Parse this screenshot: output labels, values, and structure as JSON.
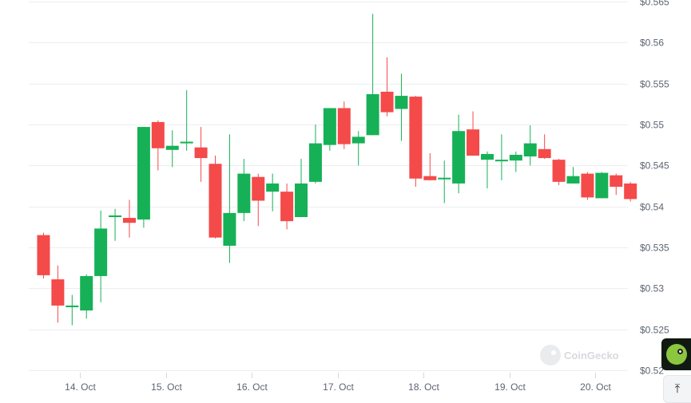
{
  "chart_data": {
    "type": "candlestick",
    "title": "",
    "xlabel": "",
    "ylabel": "",
    "y_axis_position": "right",
    "ylim": [
      0.52,
      0.565
    ],
    "yticks": [
      "$0.52",
      "$0.525",
      "$0.53",
      "$0.535",
      "$0.54",
      "$0.545",
      "$0.55",
      "$0.555",
      "$0.56",
      "$0.565"
    ],
    "ytick_values": [
      0.52,
      0.525,
      0.53,
      0.535,
      0.54,
      0.545,
      0.55,
      0.555,
      0.56,
      0.565
    ],
    "xticks": [
      "14. Oct",
      "15. Oct",
      "16. Oct",
      "17. Oct",
      "18. Oct",
      "19. Oct",
      "20. Oct"
    ],
    "xtick_hours": [
      14,
      38,
      62,
      86,
      110,
      134,
      158
    ],
    "x_start_hour": 0,
    "x_end_hour": 175,
    "grid": true,
    "colors": {
      "up": "#16b157",
      "down": "#f44a4a",
      "grid": "#eceef1",
      "tick_text": "#5c6470"
    },
    "candles": [
      {
        "h": 2,
        "o": 0.5365,
        "hi": 0.5368,
        "lo": 0.5312,
        "c": 0.5316
      },
      {
        "h": 6,
        "o": 0.5311,
        "hi": 0.5328,
        "lo": 0.5258,
        "c": 0.5279
      },
      {
        "h": 10,
        "o": 0.5277,
        "hi": 0.5292,
        "lo": 0.5255,
        "c": 0.5279
      },
      {
        "h": 14,
        "o": 0.5273,
        "hi": 0.5317,
        "lo": 0.5263,
        "c": 0.5315
      },
      {
        "h": 18,
        "o": 0.5315,
        "hi": 0.5395,
        "lo": 0.5283,
        "c": 0.5373
      },
      {
        "h": 22,
        "o": 0.5387,
        "hi": 0.5397,
        "lo": 0.5358,
        "c": 0.5389
      },
      {
        "h": 26,
        "o": 0.5386,
        "hi": 0.5408,
        "lo": 0.5362,
        "c": 0.538
      },
      {
        "h": 30,
        "o": 0.5384,
        "hi": 0.5497,
        "lo": 0.5374,
        "c": 0.5497
      },
      {
        "h": 34,
        "o": 0.5503,
        "hi": 0.5505,
        "lo": 0.5444,
        "c": 0.5471
      },
      {
        "h": 38,
        "o": 0.5469,
        "hi": 0.5493,
        "lo": 0.5448,
        "c": 0.5474
      },
      {
        "h": 42,
        "o": 0.5477,
        "hi": 0.5542,
        "lo": 0.5468,
        "c": 0.5479
      },
      {
        "h": 46,
        "o": 0.5472,
        "hi": 0.5497,
        "lo": 0.543,
        "c": 0.5459
      },
      {
        "h": 50,
        "o": 0.5452,
        "hi": 0.5462,
        "lo": 0.5361,
        "c": 0.5362
      },
      {
        "h": 54,
        "o": 0.5352,
        "hi": 0.5488,
        "lo": 0.5331,
        "c": 0.5392
      },
      {
        "h": 58,
        "o": 0.5392,
        "hi": 0.5458,
        "lo": 0.5382,
        "c": 0.544
      },
      {
        "h": 62,
        "o": 0.5436,
        "hi": 0.544,
        "lo": 0.5376,
        "c": 0.5407
      },
      {
        "h": 66,
        "o": 0.5418,
        "hi": 0.544,
        "lo": 0.5394,
        "c": 0.5428
      },
      {
        "h": 70,
        "o": 0.5418,
        "hi": 0.5428,
        "lo": 0.5372,
        "c": 0.5382
      },
      {
        "h": 74,
        "o": 0.5387,
        "hi": 0.5458,
        "lo": 0.5387,
        "c": 0.5428
      },
      {
        "h": 78,
        "o": 0.543,
        "hi": 0.55,
        "lo": 0.5428,
        "c": 0.5477
      },
      {
        "h": 82,
        "o": 0.5475,
        "hi": 0.552,
        "lo": 0.5468,
        "c": 0.552
      },
      {
        "h": 86,
        "o": 0.552,
        "hi": 0.5528,
        "lo": 0.547,
        "c": 0.5476
      },
      {
        "h": 90,
        "o": 0.5477,
        "hi": 0.5492,
        "lo": 0.545,
        "c": 0.5485
      },
      {
        "h": 94,
        "o": 0.5487,
        "hi": 0.5635,
        "lo": 0.5487,
        "c": 0.5537
      },
      {
        "h": 98,
        "o": 0.554,
        "hi": 0.5582,
        "lo": 0.551,
        "c": 0.5515
      },
      {
        "h": 102,
        "o": 0.5519,
        "hi": 0.5562,
        "lo": 0.548,
        "c": 0.5535
      },
      {
        "h": 106,
        "o": 0.5534,
        "hi": 0.5535,
        "lo": 0.5424,
        "c": 0.5434
      },
      {
        "h": 110,
        "o": 0.5437,
        "hi": 0.5465,
        "lo": 0.5432,
        "c": 0.5432
      },
      {
        "h": 114,
        "o": 0.5434,
        "hi": 0.5456,
        "lo": 0.5404,
        "c": 0.5435
      },
      {
        "h": 118,
        "o": 0.5428,
        "hi": 0.5512,
        "lo": 0.5416,
        "c": 0.5492
      },
      {
        "h": 122,
        "o": 0.5494,
        "hi": 0.5516,
        "lo": 0.5462,
        "c": 0.5462
      },
      {
        "h": 126,
        "o": 0.5457,
        "hi": 0.5467,
        "lo": 0.5422,
        "c": 0.5464
      },
      {
        "h": 130,
        "o": 0.5457,
        "hi": 0.5488,
        "lo": 0.5432,
        "c": 0.5457
      },
      {
        "h": 134,
        "o": 0.5456,
        "hi": 0.5467,
        "lo": 0.5442,
        "c": 0.5463
      },
      {
        "h": 138,
        "o": 0.5461,
        "hi": 0.5499,
        "lo": 0.545,
        "c": 0.5477
      },
      {
        "h": 142,
        "o": 0.547,
        "hi": 0.5488,
        "lo": 0.5458,
        "c": 0.5459
      },
      {
        "h": 146,
        "o": 0.5457,
        "hi": 0.5458,
        "lo": 0.5426,
        "c": 0.543
      },
      {
        "h": 150,
        "o": 0.5428,
        "hi": 0.5448,
        "lo": 0.5428,
        "c": 0.5437
      },
      {
        "h": 154,
        "o": 0.544,
        "hi": 0.5442,
        "lo": 0.5408,
        "c": 0.5411
      },
      {
        "h": 158,
        "o": 0.541,
        "hi": 0.5442,
        "lo": 0.541,
        "c": 0.5441
      },
      {
        "h": 162,
        "o": 0.5438,
        "hi": 0.544,
        "lo": 0.5414,
        "c": 0.5424
      },
      {
        "h": 166,
        "o": 0.5428,
        "hi": 0.543,
        "lo": 0.5406,
        "c": 0.5409
      }
    ]
  },
  "watermark": {
    "text": "CoinGecko"
  },
  "icons": {
    "gecko_badge": "coingecko-gecko-icon",
    "scroll_top": "arrow-up-to-line-icon",
    "scroll_top_glyph": "⤒"
  }
}
